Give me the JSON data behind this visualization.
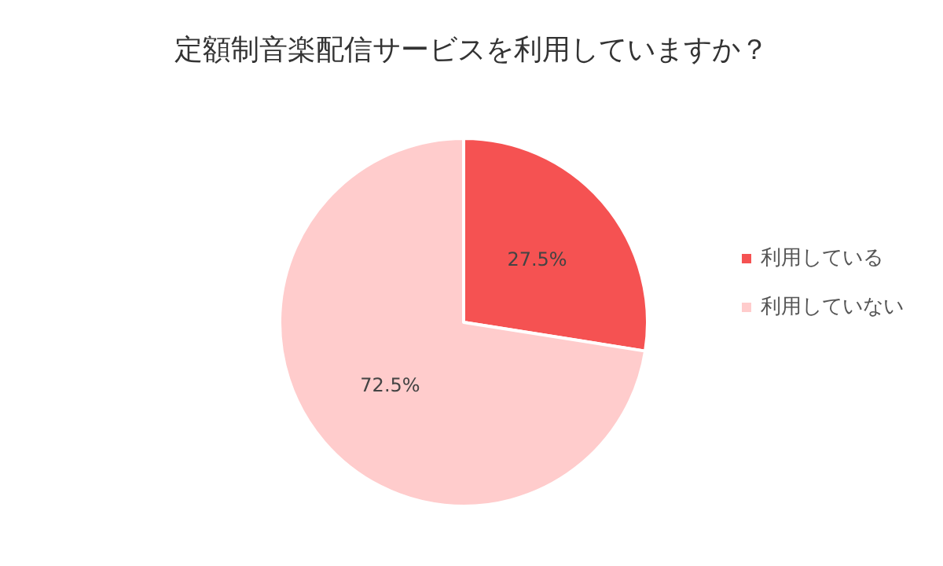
{
  "chart_data": {
    "type": "pie",
    "title": "定額制音楽配信サービスを利用していますか？",
    "categories": [
      "利用している",
      "利用していない"
    ],
    "values": [
      27.5,
      72.5
    ],
    "colors": [
      "#f55252",
      "#ffcccc"
    ],
    "value_labels": [
      "27.5%",
      "72.5%"
    ],
    "legend": "right"
  }
}
